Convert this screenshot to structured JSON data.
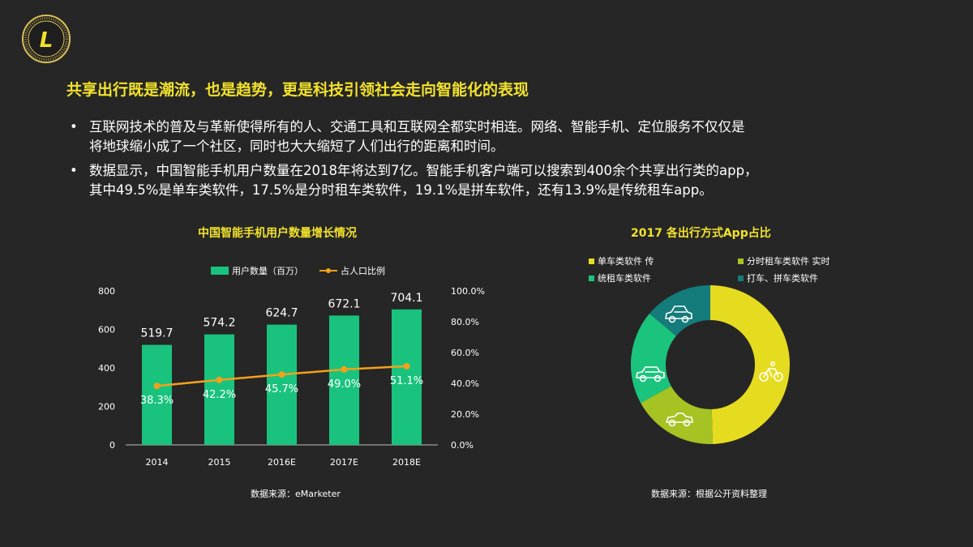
{
  "logo": {
    "letter": "L"
  },
  "headline": "共享出行既是潮流，也是趋势，更是科技引领社会走向智能化的表现",
  "bullets": [
    {
      "lines": [
        "互联网技术的普及与革新使得所有的人、交通工具和互联网全都实时相连。网络、智能手机、定位服务不仅仅是",
        "将地球缩小成了一个社区，同时也大大缩短了人们出行的距离和时间。"
      ]
    },
    {
      "lines": [
        "数据显示，中国智能手机用户数量在2018年将达到7亿。智能手机客户端可以搜索到400余个共享出行类的app，",
        "其中49.5%是单车类软件，17.5%是分时租车类软件，19.1%是拼车软件，还有13.9%是传统租车app。"
      ]
    }
  ],
  "bullet_symbol": "•",
  "left_chart": {
    "title": "中国智能手机用户数量增长情况",
    "source": "数据来源：eMarketer",
    "colors": {
      "bar": "#19c37d",
      "line": "#f3a11a"
    }
  },
  "right_chart": {
    "title": "2017 各出行方式App占比",
    "source": "数据来源：根据公开资料整理",
    "legend": [
      "单车类软件 传",
      "分时租车类软件 实时",
      "统租车类软件",
      "打车、拼车类软件"
    ],
    "colors": [
      "#e6dc1f",
      "#a5c323",
      "#1bc47d",
      "#147c7a"
    ],
    "icons": [
      "bicycle-icon",
      "convertible-car-icon",
      "car-icon",
      "car-front-icon"
    ]
  },
  "chart_data": [
    {
      "type": "bar",
      "title": "中国智能手机用户数量增长情况",
      "categories": [
        "2014",
        "2015",
        "2016E",
        "2017E",
        "2018E"
      ],
      "series": [
        {
          "name": "用户数量（百万）",
          "type": "bar",
          "axis": "left",
          "values": [
            519.7,
            574.2,
            624.7,
            672.1,
            704.1
          ],
          "labels": [
            "519.7",
            "574.2",
            "624.7",
            "672.1",
            "704.1"
          ]
        },
        {
          "name": "占人口比例",
          "type": "line",
          "axis": "right",
          "values": [
            38.3,
            42.2,
            45.7,
            49.0,
            51.1
          ],
          "labels": [
            "38.3%",
            "42.2%",
            "45.7%",
            "49.0%",
            "51.1%"
          ]
        }
      ],
      "ylim": [
        0,
        800
      ],
      "yticks": [
        "0",
        "200",
        "400",
        "600",
        "800"
      ],
      "y2lim": [
        0,
        100
      ],
      "y2ticks": [
        "0.0%",
        "20.0%",
        "40.0%",
        "60.0%",
        "80.0%",
        "100.0%"
      ],
      "grid": false,
      "legend_position": "top"
    },
    {
      "type": "pie",
      "title": "2017 各出行方式App占比",
      "donut": true,
      "labels": [
        "单车类软件",
        "分时租车类软件",
        "拼车软件",
        "传统租车"
      ],
      "values": [
        49.5,
        17.5,
        19.1,
        13.9
      ],
      "legend_position": "top"
    }
  ]
}
